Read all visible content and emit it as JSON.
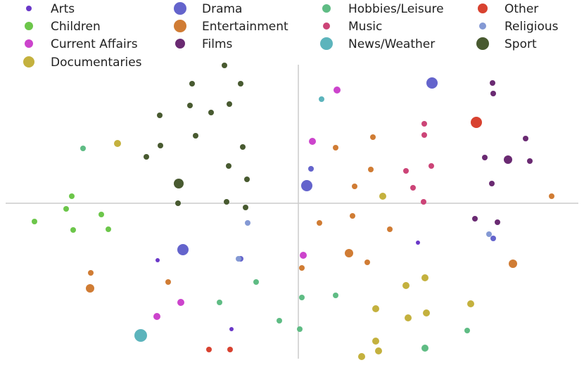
{
  "chart_data": {
    "type": "scatter",
    "title": "",
    "xlabel": "",
    "ylabel": "",
    "xlim": [
      -4.1,
      4.1
    ],
    "ylim": [
      -2.25,
      2.1
    ],
    "axes_lines": "zero lines only, no ticks or grid",
    "legend": {
      "placement": "top",
      "columns": 4
    },
    "series": [
      {
        "name": "Arts",
        "color": "#6a38c8",
        "size": 3,
        "points": [
          [
            -2.0,
            -0.81
          ],
          [
            1.7,
            -0.56
          ],
          [
            -0.95,
            -1.79
          ]
        ]
      },
      {
        "name": "Children",
        "color": "#6cc64a",
        "size": 4,
        "points": [
          [
            -3.22,
            0.1
          ],
          [
            -3.3,
            -0.08
          ],
          [
            -3.75,
            -0.26
          ],
          [
            -2.8,
            -0.16
          ],
          [
            -3.2,
            -0.38
          ],
          [
            -2.7,
            -0.37
          ]
        ]
      },
      {
        "name": "Current Affairs",
        "color": "#cc44cc",
        "size": 5,
        "points": [
          [
            0.55,
            1.61
          ],
          [
            0.2,
            0.88
          ],
          [
            0.07,
            -0.74
          ],
          [
            -1.67,
            -1.41
          ],
          [
            -2.01,
            -1.61
          ]
        ]
      },
      {
        "name": "Documentaries",
        "color": "#c4b13e",
        "size": 5,
        "points": [
          [
            -2.57,
            0.85
          ],
          [
            1.2,
            0.1
          ],
          [
            1.8,
            -1.06
          ],
          [
            1.53,
            -1.17
          ],
          [
            1.1,
            -1.5
          ],
          [
            1.56,
            -1.63
          ],
          [
            1.82,
            -1.56
          ],
          [
            2.45,
            -1.43
          ],
          [
            1.1,
            -1.96
          ],
          [
            1.14,
            -2.1
          ],
          [
            0.9,
            -2.18
          ]
        ]
      },
      {
        "name": "Drama",
        "color": "#6464cc",
        "size": 8,
        "points": [
          [
            -1.64,
            -0.66
          ],
          [
            0.12,
            0.25
          ],
          [
            1.9,
            1.71
          ]
        ]
      },
      {
        "name": "Drama",
        "color": "#6464cc",
        "size": 4,
        "points": [
          [
            0.18,
            0.49
          ],
          [
            -0.82,
            -0.79
          ],
          [
            2.77,
            -0.5
          ]
        ]
      },
      {
        "name": "Entertainment",
        "color": "#d07c34",
        "size": 4,
        "points": [
          [
            0.53,
            0.79
          ],
          [
            1.06,
            0.94
          ],
          [
            1.03,
            0.48
          ],
          [
            0.8,
            0.24
          ],
          [
            0.77,
            -0.18
          ],
          [
            0.3,
            -0.28
          ],
          [
            1.3,
            -0.37
          ],
          [
            -2.95,
            -0.99
          ],
          [
            -1.85,
            -1.12
          ],
          [
            0.05,
            -0.92
          ],
          [
            0.98,
            -0.84
          ],
          [
            3.6,
            0.1
          ]
        ]
      },
      {
        "name": "Entertainment",
        "color": "#d07c34",
        "size": 6,
        "points": [
          [
            -2.96,
            -1.21
          ],
          [
            0.72,
            -0.71
          ],
          [
            3.05,
            -0.86
          ]
        ]
      },
      {
        "name": "Films",
        "color": "#6a2a72",
        "size": 4,
        "points": [
          [
            2.76,
            1.71
          ],
          [
            2.77,
            1.56
          ],
          [
            3.23,
            0.92
          ],
          [
            3.29,
            0.6
          ],
          [
            2.65,
            0.65
          ],
          [
            2.75,
            0.28
          ],
          [
            2.51,
            -0.22
          ],
          [
            2.83,
            -0.27
          ]
        ]
      },
      {
        "name": "Films",
        "color": "#6a2a72",
        "size": 6,
        "points": [
          [
            2.98,
            0.62
          ]
        ]
      },
      {
        "name": "Hobbies/Leisure",
        "color": "#5fbc84",
        "size": 4,
        "points": [
          [
            -3.06,
            0.78
          ],
          [
            -0.6,
            -1.12
          ],
          [
            -1.12,
            -1.41
          ],
          [
            0.05,
            -1.34
          ],
          [
            0.53,
            -1.31
          ],
          [
            -0.27,
            -1.67
          ],
          [
            0.02,
            -1.79
          ],
          [
            2.4,
            -1.81
          ]
        ]
      },
      {
        "name": "Hobbies/Leisure",
        "color": "#5fbc84",
        "size": 5,
        "points": [
          [
            1.8,
            -2.06
          ]
        ]
      },
      {
        "name": "Music",
        "color": "#cc4477",
        "size": 4,
        "points": [
          [
            1.79,
            1.13
          ],
          [
            1.79,
            0.97
          ],
          [
            1.89,
            0.53
          ],
          [
            1.53,
            0.46
          ],
          [
            1.63,
            0.22
          ],
          [
            1.78,
            0.02
          ]
        ]
      },
      {
        "name": "News/Weather",
        "color": "#5cb4bc",
        "size": 4,
        "points": [
          [
            0.33,
            1.48
          ]
        ]
      },
      {
        "name": "News/Weather",
        "color": "#5cb4bc",
        "size": 9,
        "points": [
          [
            -2.24,
            -1.88
          ]
        ]
      },
      {
        "name": "Other",
        "color": "#d84230",
        "size": 8,
        "points": [
          [
            2.53,
            1.15
          ]
        ]
      },
      {
        "name": "Other",
        "color": "#d84230",
        "size": 4,
        "points": [
          [
            -1.27,
            -2.08
          ],
          [
            -0.97,
            -2.08
          ]
        ]
      },
      {
        "name": "Religious",
        "color": "#8499d4",
        "size": 4,
        "points": [
          [
            -0.72,
            -0.28
          ],
          [
            -0.85,
            -0.79
          ],
          [
            2.71,
            -0.44
          ]
        ]
      },
      {
        "name": "Sport",
        "color": "#485a30",
        "size": 4,
        "points": [
          [
            -1.05,
            1.96
          ],
          [
            -1.51,
            1.7
          ],
          [
            -0.82,
            1.7
          ],
          [
            -1.54,
            1.39
          ],
          [
            -0.98,
            1.41
          ],
          [
            -1.24,
            1.29
          ],
          [
            -1.97,
            1.25
          ],
          [
            -1.46,
            0.96
          ],
          [
            -1.96,
            0.82
          ],
          [
            -0.79,
            0.8
          ],
          [
            -2.16,
            0.66
          ],
          [
            -0.99,
            0.53
          ],
          [
            -0.73,
            0.34
          ],
          [
            -1.71,
            0.0
          ],
          [
            -1.02,
            0.02
          ],
          [
            -0.75,
            -0.06
          ]
        ]
      },
      {
        "name": "Sport",
        "color": "#485a30",
        "size": 7,
        "points": [
          [
            -1.7,
            0.28
          ]
        ]
      }
    ],
    "legend_entries": [
      {
        "name": "Arts",
        "color": "#6a38c8",
        "size": 4
      },
      {
        "name": "Drama",
        "color": "#6464cc",
        "size": 9
      },
      {
        "name": "Hobbies/Leisure",
        "color": "#5fbc84",
        "size": 6
      },
      {
        "name": "Other",
        "color": "#d84230",
        "size": 7
      },
      {
        "name": "Children",
        "color": "#6cc64a",
        "size": 6
      },
      {
        "name": "Entertainment",
        "color": "#d07c34",
        "size": 9
      },
      {
        "name": "Music",
        "color": "#cc4477",
        "size": 5
      },
      {
        "name": "Religious",
        "color": "#8499d4",
        "size": 5
      },
      {
        "name": "Current Affairs",
        "color": "#cc44cc",
        "size": 6
      },
      {
        "name": "Films",
        "color": "#6a2a72",
        "size": 7
      },
      {
        "name": "News/Weather",
        "color": "#5cb4bc",
        "size": 9
      },
      {
        "name": "Sport",
        "color": "#485a30",
        "size": 9
      },
      {
        "name": "Documentaries",
        "color": "#c4b13e",
        "size": 8
      }
    ]
  }
}
